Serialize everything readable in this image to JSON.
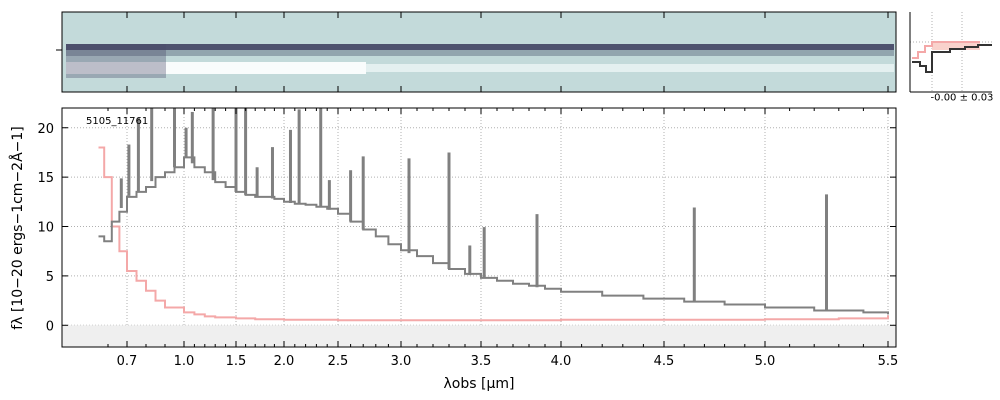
{
  "colors": {
    "spectrum": "#808080",
    "error": "#f4a8a8",
    "image_bg": "#c3dada",
    "trace_dark": "#3a3a5a",
    "grid": "#b0b0b0"
  },
  "chart_data": {
    "type": "line",
    "object_label": "5105_11761",
    "xlabel": "λobs [μm]",
    "ylabel": "fλ [10−20 ergs−1cm−2Å−1]",
    "x_tick_labels": [
      "0.7",
      "1.0",
      "1.5",
      "2.0",
      "2.5",
      "3.0",
      "3.5",
      "4.0",
      "4.5",
      "5.0",
      "5.5"
    ],
    "x_ticks": [
      0.7,
      1.0,
      1.5,
      2.0,
      2.5,
      3.0,
      3.5,
      4.0,
      4.5,
      5.0,
      5.5
    ],
    "y_ticks": [
      0,
      5,
      10,
      15,
      20
    ],
    "y_tick_labels": [
      "0",
      "5",
      "10",
      "15",
      "20"
    ],
    "ylim": [
      -2.2,
      22
    ],
    "grid": true,
    "series": [
      {
        "role": "spectrum",
        "x": [
          0.55,
          0.58,
          0.62,
          0.66,
          0.7,
          0.75,
          0.8,
          0.85,
          0.9,
          0.95,
          1.0,
          1.05,
          1.1,
          1.2,
          1.3,
          1.4,
          1.5,
          1.6,
          1.7,
          1.8,
          1.9,
          2.0,
          2.1,
          2.2,
          2.3,
          2.4,
          2.5,
          2.6,
          2.7,
          2.8,
          2.9,
          3.0,
          3.1,
          3.2,
          3.3,
          3.4,
          3.5,
          3.6,
          3.7,
          3.8,
          3.9,
          4.0,
          4.2,
          4.4,
          4.6,
          4.8,
          5.0,
          5.2,
          5.4,
          5.5
        ],
        "y": [
          9.0,
          8.5,
          10.5,
          11.5,
          13.0,
          13.5,
          14.0,
          15.0,
          15.5,
          16.0,
          17.0,
          17.0,
          16.0,
          15.5,
          14.5,
          14.0,
          13.5,
          13.2,
          13.0,
          13.0,
          12.8,
          12.5,
          12.3,
          12.2,
          12.0,
          11.8,
          11.3,
          10.5,
          9.7,
          9.0,
          8.2,
          7.6,
          7.0,
          6.3,
          5.7,
          5.2,
          4.8,
          4.5,
          4.2,
          4.0,
          3.7,
          3.4,
          3.0,
          2.7,
          2.4,
          2.1,
          1.8,
          1.5,
          1.3,
          1.1
        ]
      },
      {
        "role": "error",
        "x": [
          0.55,
          0.58,
          0.62,
          0.66,
          0.7,
          0.75,
          0.8,
          0.85,
          0.9,
          1.0,
          1.1,
          1.2,
          1.3,
          1.5,
          1.7,
          2.0,
          2.5,
          3.0,
          3.5,
          4.0,
          4.5,
          5.0,
          5.3,
          5.5
        ],
        "y": [
          18.0,
          15.0,
          10.0,
          7.5,
          5.5,
          4.5,
          3.5,
          2.5,
          1.8,
          1.3,
          1.1,
          0.9,
          0.8,
          0.7,
          0.6,
          0.55,
          0.5,
          0.5,
          0.5,
          0.55,
          0.55,
          0.6,
          0.7,
          1.0
        ]
      }
    ],
    "emission_lines": [
      0.67,
      0.71,
      0.76,
      0.83,
      0.95,
      1.02,
      1.08,
      1.28,
      1.5,
      1.6,
      1.72,
      1.88,
      2.06,
      2.14,
      2.34,
      2.42,
      2.6,
      2.7,
      3.05,
      3.3,
      3.43,
      3.52,
      3.85,
      4.65,
      5.25
    ],
    "side_panel_label": "-0.00 ± 0.03"
  }
}
